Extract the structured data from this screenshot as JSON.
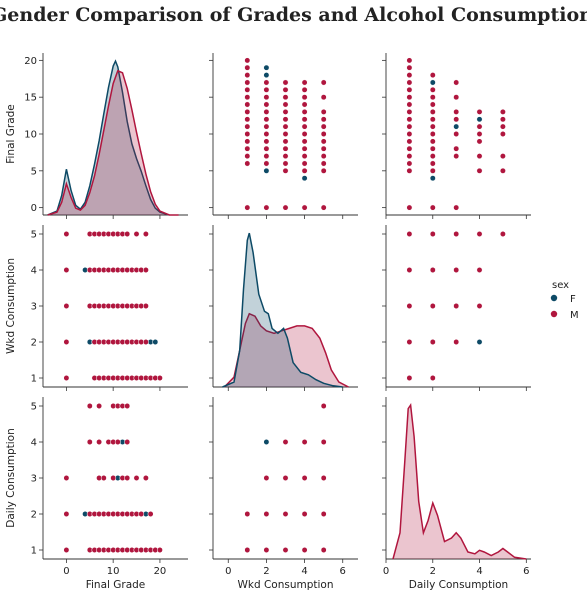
{
  "chart_data": {
    "type": "scatter",
    "title": "Gender Comparison of Grades and Alcohol Consumption",
    "variables": [
      "Final Grade",
      "Wkd Consumption",
      "Daily Consumption"
    ],
    "ranges": {
      "Final Grade": [
        -5,
        26
      ],
      "Wkd Consumption": [
        -0.8,
        6.8
      ],
      "Daily Consumption": [
        0,
        6.2
      ]
    },
    "tick_values": {
      "Final Grade": [
        0,
        5,
        10,
        15,
        20
      ],
      "Wkd Consumption": [
        1,
        2,
        3,
        4,
        5
      ],
      "Daily Consumption": [
        1,
        2,
        3,
        4,
        5
      ]
    },
    "bottom_ticks": {
      "Final Grade": [
        0,
        10,
        20
      ],
      "Wkd Consumption": [
        0,
        2,
        4,
        6
      ],
      "Daily Consumption": [
        0,
        2,
        4,
        6
      ]
    },
    "legend": {
      "title": "sex",
      "entries": [
        {
          "label": "F",
          "color": "#0d4a66"
        },
        {
          "label": "M",
          "color": "#b0163e"
        }
      ],
      "placement": "right"
    },
    "series": [
      {
        "name": "F",
        "color": "#0d4a66",
        "grade_wkd": [
          [
            4,
            4
          ],
          [
            5,
            2
          ],
          [
            6,
            2
          ],
          [
            7,
            2
          ],
          [
            8,
            2
          ],
          [
            17,
            3
          ],
          [
            18,
            2
          ],
          [
            19,
            2
          ],
          [
            10,
            3
          ],
          [
            12,
            4
          ],
          [
            11,
            5
          ],
          [
            13,
            2
          ]
        ],
        "grade_daily": [
          [
            4,
            2
          ],
          [
            5,
            2
          ],
          [
            6,
            2
          ],
          [
            7,
            2
          ],
          [
            12,
            4
          ],
          [
            13,
            2
          ],
          [
            17,
            2
          ],
          [
            11,
            3
          ]
        ],
        "wkd_daily": [
          [
            2,
            4
          ],
          [
            4,
            2
          ],
          [
            1,
            1
          ],
          [
            2,
            2
          ],
          [
            3,
            3
          ]
        ],
        "kde_grade": [
          [
            -4,
            0.0
          ],
          [
            -2,
            0.004
          ],
          [
            -1,
            0.02
          ],
          [
            0,
            0.047
          ],
          [
            1,
            0.025
          ],
          [
            2,
            0.01
          ],
          [
            3,
            0.006
          ],
          [
            4,
            0.013
          ],
          [
            5,
            0.03
          ],
          [
            6,
            0.052
          ],
          [
            7,
            0.076
          ],
          [
            8,
            0.104
          ],
          [
            9,
            0.131
          ],
          [
            10,
            0.153
          ],
          [
            10.5,
            0.158
          ],
          [
            11,
            0.152
          ],
          [
            12,
            0.126
          ],
          [
            13,
            0.096
          ],
          [
            14,
            0.073
          ],
          [
            15,
            0.058
          ],
          [
            16,
            0.045
          ],
          [
            17,
            0.03
          ],
          [
            18,
            0.016
          ],
          [
            19,
            0.007
          ],
          [
            20,
            0.003
          ],
          [
            22,
            0.0
          ]
        ],
        "kde_wkd": [
          [
            -0.3,
            0.0
          ],
          [
            0.3,
            0.02
          ],
          [
            0.6,
            0.15
          ],
          [
            0.8,
            0.4
          ],
          [
            1.0,
            0.6
          ],
          [
            1.1,
            0.63
          ],
          [
            1.3,
            0.55
          ],
          [
            1.6,
            0.38
          ],
          [
            1.9,
            0.31
          ],
          [
            2.1,
            0.3
          ],
          [
            2.3,
            0.24
          ],
          [
            2.6,
            0.22
          ],
          [
            2.9,
            0.24
          ],
          [
            3.1,
            0.2
          ],
          [
            3.4,
            0.1
          ],
          [
            3.8,
            0.06
          ],
          [
            4.2,
            0.05
          ],
          [
            4.6,
            0.03
          ],
          [
            5.0,
            0.015
          ],
          [
            5.5,
            0.005
          ],
          [
            6.0,
            0.0
          ]
        ]
      },
      {
        "name": "M",
        "color": "#b0163e",
        "grade_wkd": [
          [
            0,
            5
          ],
          [
            0,
            4
          ],
          [
            0,
            3
          ],
          [
            0,
            2
          ],
          [
            0,
            1
          ],
          [
            5,
            5
          ],
          [
            6,
            5
          ],
          [
            7,
            5
          ],
          [
            8,
            5
          ],
          [
            9,
            5
          ],
          [
            10,
            5
          ],
          [
            11,
            5
          ],
          [
            12,
            5
          ],
          [
            13,
            5
          ],
          [
            15,
            5
          ],
          [
            17,
            5
          ],
          [
            5,
            4
          ],
          [
            6,
            4
          ],
          [
            7,
            4
          ],
          [
            8,
            4
          ],
          [
            9,
            4
          ],
          [
            10,
            4
          ],
          [
            11,
            4
          ],
          [
            12,
            4
          ],
          [
            13,
            4
          ],
          [
            14,
            4
          ],
          [
            15,
            4
          ],
          [
            16,
            4
          ],
          [
            17,
            4
          ],
          [
            5,
            3
          ],
          [
            6,
            3
          ],
          [
            7,
            3
          ],
          [
            8,
            3
          ],
          [
            9,
            3
          ],
          [
            10,
            3
          ],
          [
            11,
            3
          ],
          [
            12,
            3
          ],
          [
            13,
            3
          ],
          [
            14,
            3
          ],
          [
            15,
            3
          ],
          [
            16,
            3
          ],
          [
            17,
            3
          ],
          [
            6,
            2
          ],
          [
            7,
            2
          ],
          [
            8,
            2
          ],
          [
            9,
            2
          ],
          [
            10,
            2
          ],
          [
            11,
            2
          ],
          [
            12,
            2
          ],
          [
            13,
            2
          ],
          [
            14,
            2
          ],
          [
            15,
            2
          ],
          [
            16,
            2
          ],
          [
            17,
            2
          ],
          [
            6,
            1
          ],
          [
            7,
            1
          ],
          [
            8,
            1
          ],
          [
            9,
            1
          ],
          [
            10,
            1
          ],
          [
            11,
            1
          ],
          [
            12,
            1
          ],
          [
            13,
            1
          ],
          [
            14,
            1
          ],
          [
            15,
            1
          ],
          [
            16,
            1
          ],
          [
            17,
            1
          ],
          [
            18,
            1
          ],
          [
            19,
            1
          ],
          [
            20,
            1
          ]
        ],
        "grade_daily": [
          [
            5,
            5
          ],
          [
            7,
            5
          ],
          [
            10,
            5
          ],
          [
            11,
            5
          ],
          [
            12,
            5
          ],
          [
            13,
            5
          ],
          [
            5,
            4
          ],
          [
            7,
            4
          ],
          [
            9,
            4
          ],
          [
            10,
            4
          ],
          [
            11,
            4
          ],
          [
            13,
            4
          ],
          [
            0,
            3
          ],
          [
            7,
            3
          ],
          [
            8,
            3
          ],
          [
            10,
            3
          ],
          [
            12,
            3
          ],
          [
            13,
            3
          ],
          [
            15,
            3
          ],
          [
            17,
            3
          ],
          [
            0,
            2
          ],
          [
            5,
            2
          ],
          [
            6,
            2
          ],
          [
            7,
            2
          ],
          [
            8,
            2
          ],
          [
            9,
            2
          ],
          [
            10,
            2
          ],
          [
            11,
            2
          ],
          [
            12,
            2
          ],
          [
            13,
            2
          ],
          [
            14,
            2
          ],
          [
            15,
            2
          ],
          [
            16,
            2
          ],
          [
            18,
            2
          ],
          [
            0,
            1
          ],
          [
            5,
            1
          ],
          [
            6,
            1
          ],
          [
            7,
            1
          ],
          [
            8,
            1
          ],
          [
            9,
            1
          ],
          [
            10,
            1
          ],
          [
            11,
            1
          ],
          [
            12,
            1
          ],
          [
            13,
            1
          ],
          [
            14,
            1
          ],
          [
            15,
            1
          ],
          [
            16,
            1
          ],
          [
            17,
            1
          ],
          [
            18,
            1
          ],
          [
            19,
            1
          ],
          [
            20,
            1
          ]
        ],
        "wkd_daily": [
          [
            1,
            1
          ],
          [
            2,
            1
          ],
          [
            3,
            1
          ],
          [
            4,
            1
          ],
          [
            5,
            1
          ],
          [
            1,
            2
          ],
          [
            2,
            2
          ],
          [
            3,
            2
          ],
          [
            4,
            2
          ],
          [
            5,
            2
          ],
          [
            2,
            3
          ],
          [
            3,
            3
          ],
          [
            4,
            3
          ],
          [
            5,
            3
          ],
          [
            3,
            4
          ],
          [
            4,
            4
          ],
          [
            5,
            4
          ],
          [
            5,
            5
          ]
        ],
        "kde_grade": [
          [
            -4,
            0.0
          ],
          [
            -2,
            0.003
          ],
          [
            -1,
            0.013
          ],
          [
            0,
            0.032
          ],
          [
            1,
            0.018
          ],
          [
            2,
            0.007
          ],
          [
            3,
            0.005
          ],
          [
            4,
            0.01
          ],
          [
            5,
            0.023
          ],
          [
            6,
            0.04
          ],
          [
            7,
            0.062
          ],
          [
            8,
            0.087
          ],
          [
            9,
            0.112
          ],
          [
            10,
            0.135
          ],
          [
            11,
            0.148
          ],
          [
            12,
            0.146
          ],
          [
            13,
            0.13
          ],
          [
            14,
            0.108
          ],
          [
            15,
            0.085
          ],
          [
            16,
            0.063
          ],
          [
            17,
            0.042
          ],
          [
            18,
            0.024
          ],
          [
            19,
            0.011
          ],
          [
            20,
            0.004
          ],
          [
            22,
            0.0
          ],
          [
            24,
            0.0
          ]
        ],
        "kde_wkd": [
          [
            -0.2,
            0.0
          ],
          [
            0.3,
            0.04
          ],
          [
            0.6,
            0.15
          ],
          [
            0.9,
            0.26
          ],
          [
            1.1,
            0.3
          ],
          [
            1.4,
            0.29
          ],
          [
            1.7,
            0.25
          ],
          [
            2.0,
            0.23
          ],
          [
            2.4,
            0.22
          ],
          [
            2.8,
            0.23
          ],
          [
            3.2,
            0.24
          ],
          [
            3.6,
            0.25
          ],
          [
            4.0,
            0.25
          ],
          [
            4.4,
            0.24
          ],
          [
            4.8,
            0.2
          ],
          [
            5.1,
            0.14
          ],
          [
            5.4,
            0.07
          ],
          [
            5.8,
            0.02
          ],
          [
            6.3,
            0.0
          ]
        ],
        "kde_daily": [
          [
            0.3,
            0.0
          ],
          [
            0.6,
            0.15
          ],
          [
            0.8,
            0.55
          ],
          [
            0.95,
            0.86
          ],
          [
            1.05,
            0.88
          ],
          [
            1.2,
            0.7
          ],
          [
            1.4,
            0.33
          ],
          [
            1.6,
            0.15
          ],
          [
            1.8,
            0.22
          ],
          [
            2.0,
            0.32
          ],
          [
            2.2,
            0.25
          ],
          [
            2.5,
            0.1
          ],
          [
            2.8,
            0.12
          ],
          [
            3.0,
            0.15
          ],
          [
            3.2,
            0.12
          ],
          [
            3.5,
            0.04
          ],
          [
            3.8,
            0.03
          ],
          [
            4.0,
            0.05
          ],
          [
            4.2,
            0.04
          ],
          [
            4.5,
            0.02
          ],
          [
            4.8,
            0.04
          ],
          [
            5.0,
            0.06
          ],
          [
            5.2,
            0.04
          ],
          [
            5.5,
            0.01
          ],
          [
            6.0,
            0.0
          ]
        ]
      }
    ]
  }
}
